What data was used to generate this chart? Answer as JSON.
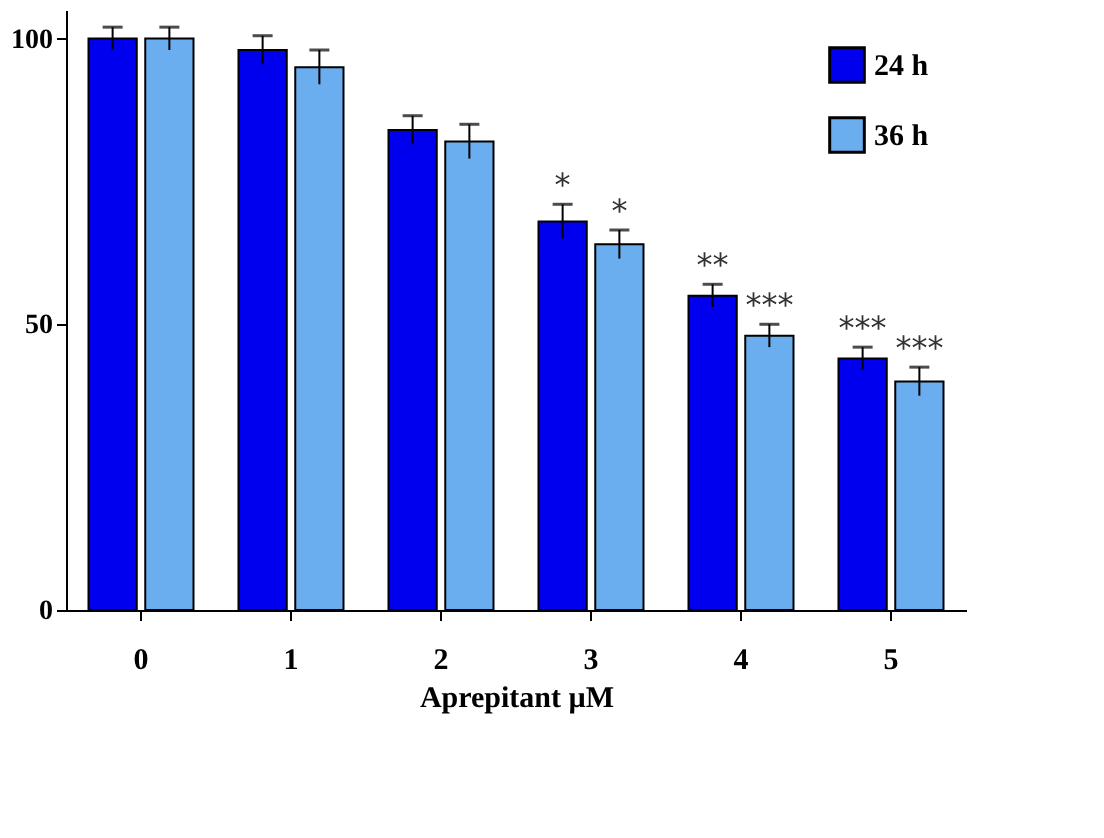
{
  "chart_data": {
    "type": "bar",
    "xlabel": "Aprepitant µM",
    "categories": [
      "0",
      "1",
      "2",
      "3",
      "4",
      "5"
    ],
    "series": [
      {
        "name": "24 h",
        "color": "#0000ee",
        "values": [
          100,
          98,
          84,
          68,
          55,
          44
        ],
        "errors": [
          2,
          2.5,
          2.5,
          3,
          2,
          2
        ]
      },
      {
        "name": "36 h",
        "color": "#6aaef0",
        "values": [
          100,
          95,
          82,
          64,
          48,
          40
        ],
        "errors": [
          2,
          3,
          3,
          2.5,
          2,
          2.5
        ]
      }
    ],
    "ylim": [
      0,
      105
    ],
    "yticks": [
      0,
      50,
      100
    ],
    "grid": false,
    "legend": "top right",
    "annotations": [
      {
        "text": "*",
        "x": "3",
        "y": 68
      },
      {
        "text": "*",
        "x": "3",
        "y": 64
      },
      {
        "text": "**",
        "x": "4",
        "y": 55
      },
      {
        "text": "***",
        "x": "4",
        "y": 48
      },
      {
        "text": "***",
        "x": "5",
        "y": 44
      },
      {
        "text": "***",
        "x": "5",
        "y": 40
      }
    ]
  }
}
